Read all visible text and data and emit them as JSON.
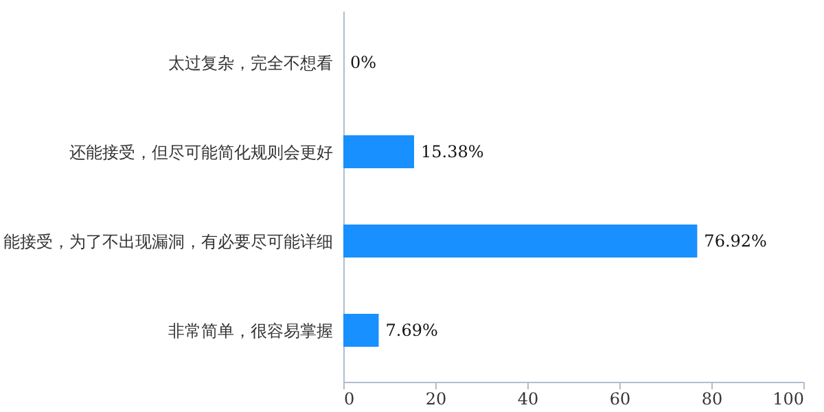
{
  "chart_data": {
    "type": "bar",
    "orientation": "horizontal",
    "categories": [
      "太过复杂，完全不想看",
      "还能接受，但尽可能简化规则会更好",
      "能接受，为了不出现漏洞，有必要尽可能详细",
      "非常简单，很容易掌握"
    ],
    "values": [
      0,
      15.38,
      76.92,
      7.69
    ],
    "value_labels": [
      "0%",
      "15.38%",
      "76.92%",
      "7.69%"
    ],
    "color": "#1890ff",
    "xlim": [
      0,
      100
    ],
    "xticks": [
      0,
      20,
      40,
      60,
      80,
      100
    ],
    "grid": false
  }
}
